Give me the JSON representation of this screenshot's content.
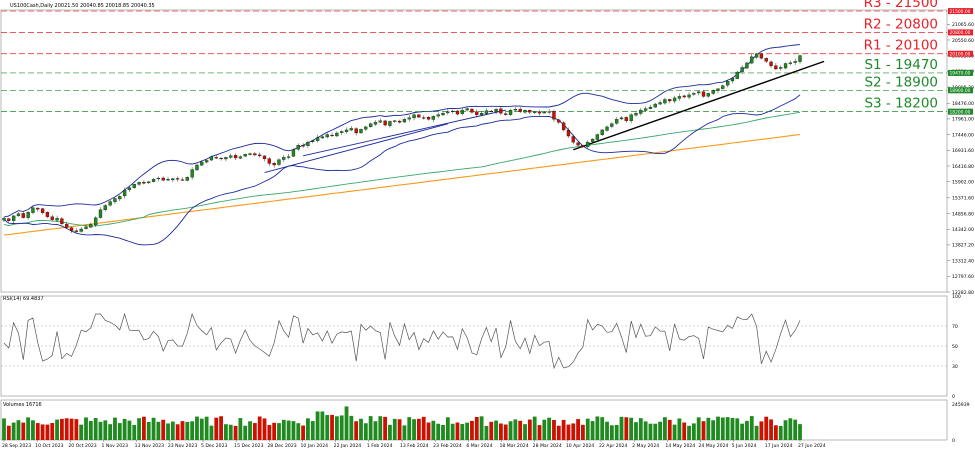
{
  "header": {
    "symbol_info": "US100Cash,Daily  20021.50 20040.85 20018.85 20040.35"
  },
  "levels": [
    {
      "label": "R3 - 21500",
      "price": 21500,
      "tag": "21500.00",
      "kind": "resistance"
    },
    {
      "label": "R2 - 20800",
      "price": 20800,
      "tag": "20800.00",
      "kind": "resistance"
    },
    {
      "label": "R1 - 20100",
      "price": 20100,
      "tag": "20100.00",
      "kind": "resistance"
    },
    {
      "label": "S1 - 19470",
      "price": 19470,
      "tag": "19470.00",
      "kind": "support"
    },
    {
      "label": "S2 - 18900",
      "price": 18900,
      "tag": "18900.00",
      "kind": "support"
    },
    {
      "label": "S3 - 18200",
      "price": 18200,
      "tag": "18200.00",
      "kind": "support"
    }
  ],
  "colors": {
    "up": "#1f8a1f",
    "down": "#cc1100",
    "resistance": "#e8222a",
    "support": "#1f8a2a",
    "bollinger": "#1c2a9c",
    "ma_green": "#3aa86b",
    "ma_orange": "#f59a1b",
    "trend": "#000000",
    "rsi": "#555555"
  },
  "chart_data": [
    {
      "type": "candlestick",
      "title": "US100Cash,Daily",
      "ylim": [
        12282.8,
        21535
      ],
      "y_ticks": [
        "21580.00",
        "21065.60",
        "20550.60",
        "20035.60",
        "19520.40",
        "19005.20",
        "18476.00",
        "17961.00",
        "17446.00",
        "16931.60",
        "16416.80",
        "15902.00",
        "15371.60",
        "14856.80",
        "14342.00",
        "13827.20",
        "13312.40",
        "12797.60",
        "12282.80"
      ],
      "x_ticks": [
        "28 Sep 2023",
        "10 Oct 2023",
        "20 Oct 2023",
        "1 Nov 2023",
        "13 Nov 2023",
        "23 Nov 2023",
        "5 Dec 2023",
        "15 Dec 2023",
        "28 Dec 2023",
        "10 Jan 2024",
        "22 Jan 2024",
        "1 Feb 2024",
        "13 Feb 2024",
        "23 Feb 2024",
        "6 Mar 2024",
        "18 Mar 2024",
        "28 Mar 2024",
        "10 Apr 2024",
        "22 Apr 2024",
        "2 May 2024",
        "14 May 2024",
        "24 May 2024",
        "5 Jun 2024",
        "17 Jun 2024",
        "27 Jun 2024"
      ],
      "closes": [
        14700,
        14620,
        14780,
        14850,
        14720,
        14900,
        15050,
        15000,
        14880,
        14750,
        14650,
        14700,
        14520,
        14400,
        14300,
        14280,
        14350,
        14420,
        14500,
        14720,
        14980,
        15120,
        15250,
        15350,
        15420,
        15620,
        15700,
        15820,
        15880,
        15850,
        15900,
        15980,
        16020,
        15950,
        15980,
        16000,
        15980,
        15960,
        16050,
        16300,
        16450,
        16550,
        16600,
        16720,
        16680,
        16650,
        16700,
        16750,
        16680,
        16720,
        16800,
        16820,
        16780,
        16750,
        16650,
        16500,
        16450,
        16620,
        16700,
        16720,
        16950,
        17100,
        17080,
        17200,
        17250,
        17350,
        17380,
        17450,
        17420,
        17500,
        17550,
        17600,
        17650,
        17500,
        17620,
        17700,
        17800,
        17850,
        17900,
        17760,
        17880,
        17900,
        17850,
        17950,
        18000,
        18100,
        18020,
        18000,
        17950,
        18050,
        18100,
        18150,
        18200,
        18220,
        18120,
        18250,
        18300,
        18180,
        18100,
        18150,
        18230,
        18200,
        18280,
        18150,
        18100,
        18250,
        18280,
        18200,
        18250,
        18180,
        18200,
        18150,
        18180,
        18200,
        17950,
        17850,
        17600,
        17400,
        17200,
        17100,
        17050,
        17200,
        17300,
        17450,
        17600,
        17700,
        17800,
        17950,
        18000,
        17900,
        18100,
        18150,
        18250,
        18300,
        18350,
        18450,
        18500,
        18600,
        18550,
        18650,
        18700,
        18680,
        18750,
        18800,
        18850,
        18700,
        18800,
        18900,
        18950,
        19050,
        19200,
        19300,
        19500,
        19650,
        19800,
        20000,
        20100,
        19950,
        19850,
        19700,
        19600,
        19650,
        19780,
        19800,
        19850,
        20040
      ]
    },
    {
      "type": "line",
      "title": "RSI(14) 69.4837",
      "ylim": [
        0,
        100
      ],
      "y_ticks": [
        "100",
        "70",
        "50",
        "30",
        "0"
      ]
    },
    {
      "type": "bar",
      "title": "Volumes 16716",
      "y_ticks": [
        "245939",
        "0"
      ]
    }
  ]
}
